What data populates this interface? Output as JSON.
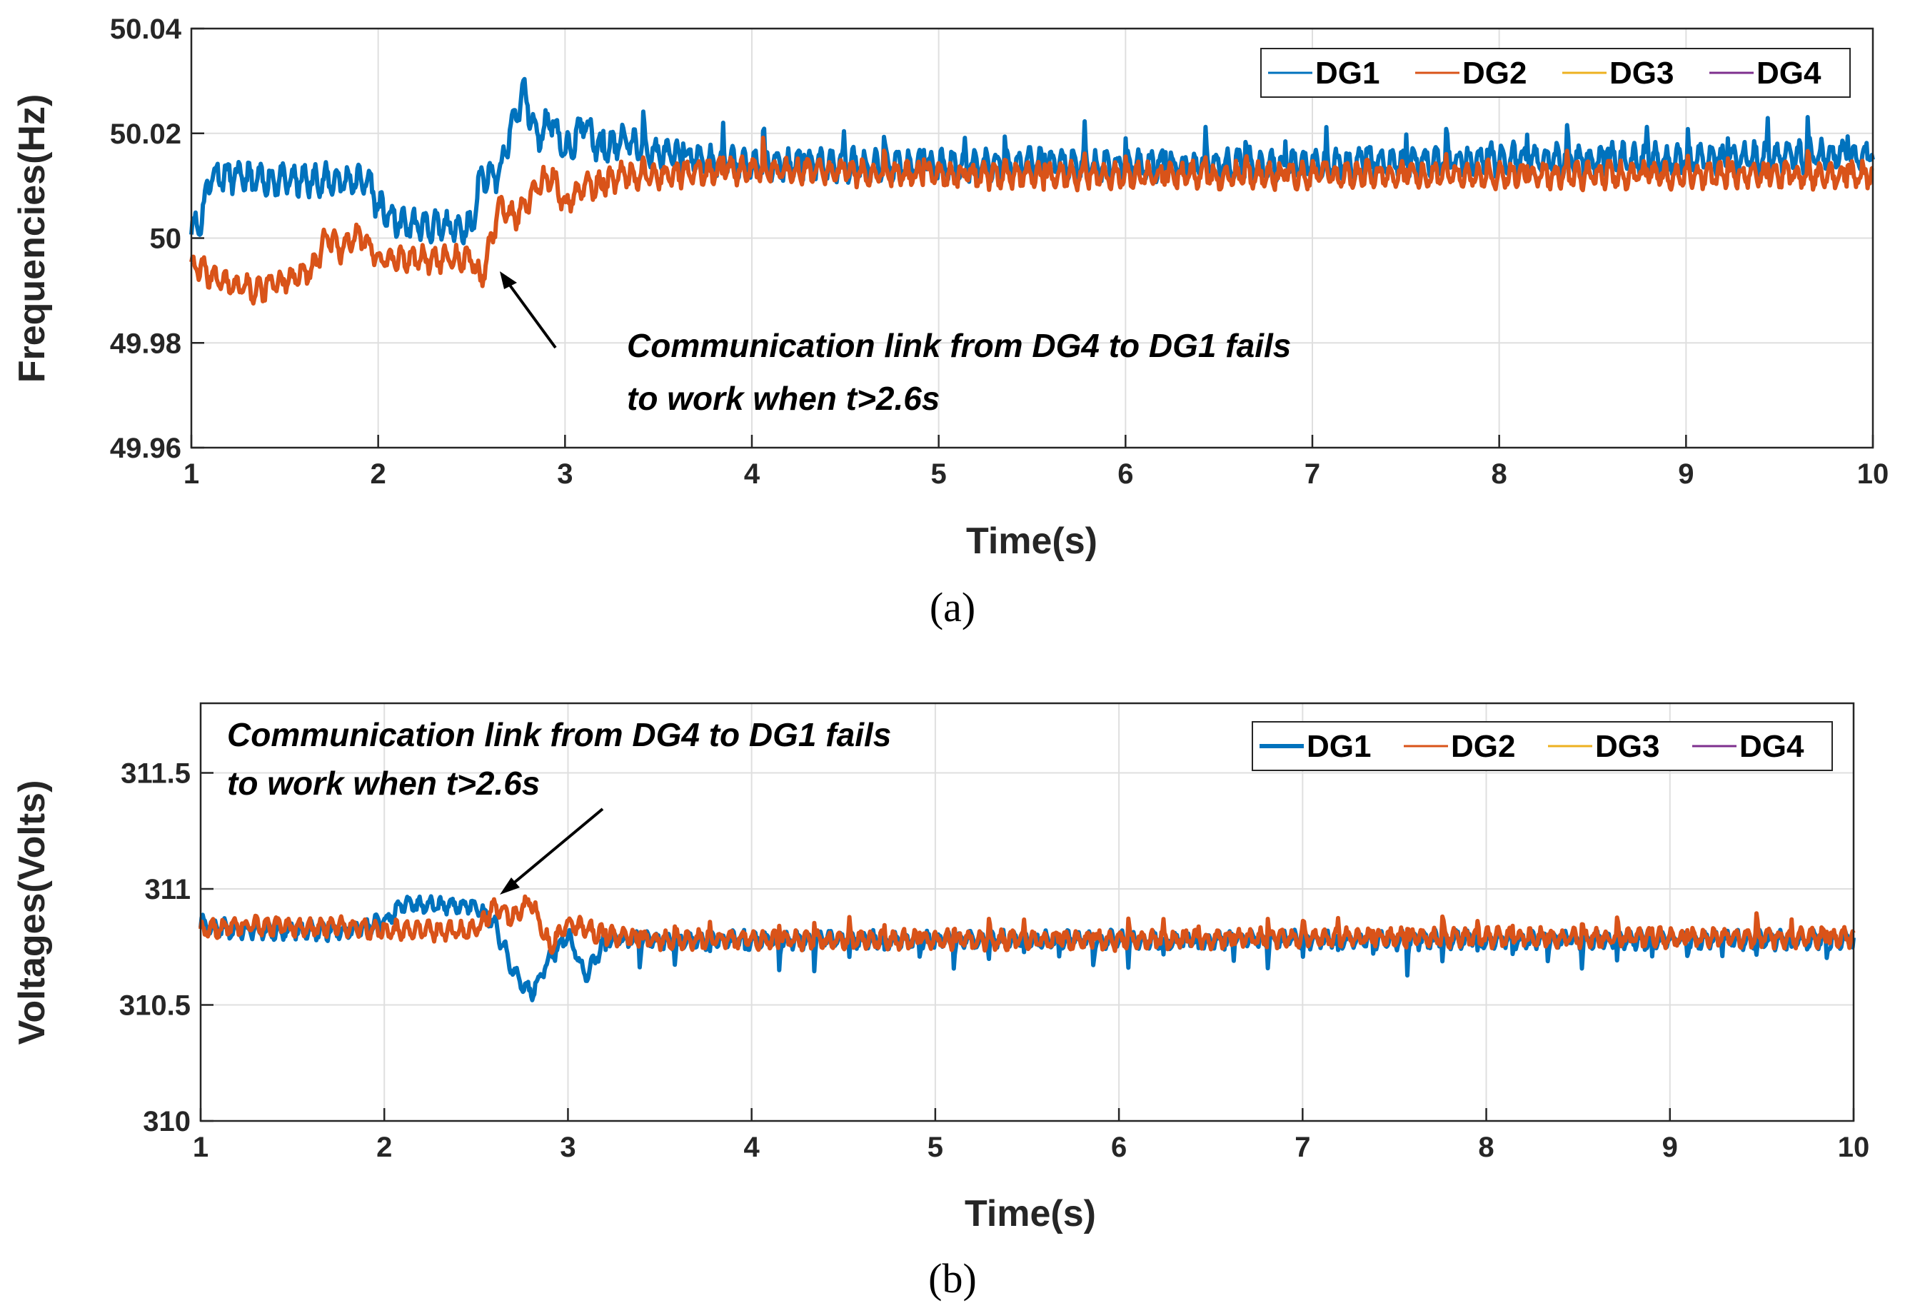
{
  "chart_data": [
    {
      "type": "line",
      "panel": "a",
      "caption": "(a)",
      "xlabel": "Time(s)",
      "ylabel": "Frequencies(Hz)",
      "xlim": [
        1,
        10
      ],
      "ylim": [
        49.96,
        50.04
      ],
      "xticks": [
        1,
        2,
        3,
        4,
        5,
        6,
        7,
        8,
        9,
        10
      ],
      "yticks": [
        49.96,
        49.98,
        50,
        50.02,
        50.04
      ],
      "ytick_labels": [
        "49.96",
        "49.98",
        "50",
        "50.02",
        "50.04"
      ],
      "grid": true,
      "legend": {
        "location": "top-right",
        "entries": [
          "DG1",
          "DG2",
          "DG3",
          "DG4"
        ]
      },
      "series_colors": [
        "#0072BD",
        "#D95319",
        "#EDB120",
        "#7E2F8E"
      ],
      "annotation": {
        "lines": [
          "Communication link from DG4 to DG1 fails",
          "to work when t>2.6s"
        ],
        "arrow_to": [
          2.57,
          49.992
        ]
      },
      "series": [
        {
          "name": "DG1",
          "x": [
            1.0,
            1.05,
            1.1,
            1.2,
            1.35,
            1.5,
            1.65,
            1.8,
            1.95,
            2.0,
            2.1,
            2.3,
            2.5,
            2.55,
            2.65,
            2.72,
            2.78,
            2.85,
            2.93,
            3.0,
            3.1,
            3.2,
            3.3,
            3.5,
            4.0,
            5.0,
            6.0,
            7.0,
            8.0,
            9.0,
            10.0
          ],
          "y": [
            50.002,
            50.003,
            50.012,
            50.012,
            50.011,
            50.011,
            50.011,
            50.011,
            50.011,
            50.006,
            50.003,
            50.002,
            50.002,
            50.012,
            50.012,
            50.022,
            50.028,
            50.019,
            50.023,
            50.016,
            50.022,
            50.016,
            50.019,
            50.016,
            50.014,
            50.014,
            50.014,
            50.014,
            50.015,
            50.015,
            50.016
          ]
        },
        {
          "name": "DG2",
          "x": [
            1.0,
            1.1,
            1.2,
            1.35,
            1.5,
            1.65,
            1.72,
            1.8,
            1.9,
            2.0,
            2.2,
            2.5,
            2.55,
            2.65,
            2.75,
            2.85,
            2.93,
            3.0,
            3.1,
            3.2,
            3.3,
            3.5,
            4.0,
            5.0,
            6.0,
            7.0,
            8.0,
            9.0,
            10.0
          ],
          "y": [
            49.995,
            49.993,
            49.991,
            49.99,
            49.992,
            49.994,
            50.0,
            49.998,
            50.001,
            49.996,
            49.996,
            49.996,
            49.992,
            50.006,
            50.004,
            50.01,
            50.012,
            50.006,
            50.01,
            50.01,
            50.012,
            50.012,
            50.013,
            50.012,
            50.012,
            50.012,
            50.012,
            50.012,
            50.012
          ]
        },
        {
          "name": "DG3",
          "x": [],
          "y": []
        },
        {
          "name": "DG4",
          "x": [],
          "y": []
        }
      ]
    },
    {
      "type": "line",
      "panel": "b",
      "caption": "(b)",
      "xlabel": "Time(s)",
      "ylabel": "Voltages(Volts)",
      "xlim": [
        1,
        10
      ],
      "ylim": [
        310,
        311.8
      ],
      "xticks": [
        1,
        2,
        3,
        4,
        5,
        6,
        7,
        8,
        9,
        10
      ],
      "yticks": [
        310,
        310.5,
        311,
        311.5
      ],
      "ytick_labels": [
        "310",
        "310.5",
        "311",
        "311.5"
      ],
      "grid": true,
      "legend": {
        "location": "top-right",
        "entries": [
          "DG1",
          "DG2",
          "DG3",
          "DG4"
        ]
      },
      "series_colors": [
        "#0072BD",
        "#D95319",
        "#EDB120",
        "#7E2F8E"
      ],
      "annotation": {
        "lines": [
          "Communication link from DG4 to DG1 fails",
          "to work when t>2.6s"
        ],
        "arrow_to": [
          2.65,
          310.96
        ]
      },
      "series": [
        {
          "name": "DG1",
          "x": [
            1.0,
            1.2,
            1.4,
            1.6,
            1.8,
            2.0,
            2.1,
            2.3,
            2.5,
            2.6,
            2.7,
            2.8,
            2.9,
            3.0,
            3.1,
            3.2,
            3.5,
            4.0,
            5.0,
            6.0,
            7.0,
            8.0,
            9.0,
            10.0
          ],
          "y": [
            310.85,
            310.82,
            310.82,
            310.82,
            310.82,
            310.86,
            310.93,
            310.93,
            310.93,
            310.85,
            310.65,
            310.55,
            310.7,
            310.8,
            310.62,
            310.78,
            310.78,
            310.78,
            310.78,
            310.78,
            310.78,
            310.78,
            310.78,
            310.78
          ]
        },
        {
          "name": "DG2",
          "x": [
            1.0,
            1.2,
            1.4,
            1.6,
            1.8,
            2.0,
            2.2,
            2.4,
            2.5,
            2.6,
            2.7,
            2.8,
            2.9,
            3.0,
            3.2,
            3.5,
            4.0,
            5.0,
            6.0,
            7.0,
            8.0,
            9.0,
            10.0
          ],
          "y": [
            310.82,
            310.84,
            310.84,
            310.83,
            310.84,
            310.82,
            310.82,
            310.82,
            310.82,
            310.92,
            310.88,
            310.95,
            310.75,
            310.85,
            310.8,
            310.78,
            310.78,
            310.78,
            310.78,
            310.79,
            310.79,
            310.79,
            310.79
          ]
        },
        {
          "name": "DG3",
          "x": [],
          "y": []
        },
        {
          "name": "DG4",
          "x": [],
          "y": []
        }
      ]
    }
  ]
}
